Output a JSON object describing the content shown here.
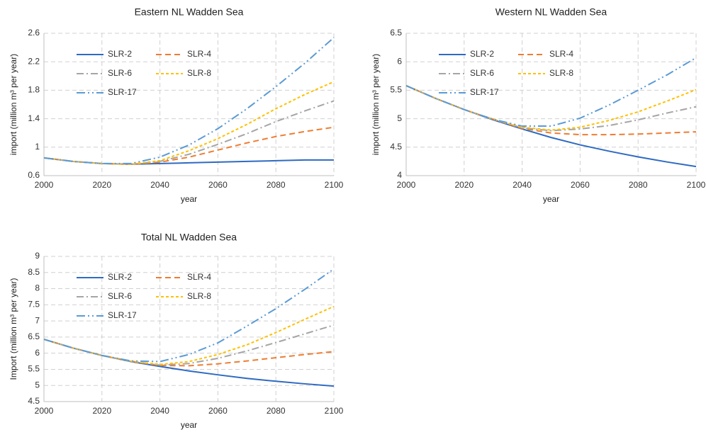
{
  "chart_data": [
    {
      "type": "line",
      "title": "Eastern NL Wadden Sea",
      "xlabel": "year",
      "ylabel": "import (million m³ per year)",
      "x": [
        2000,
        2010,
        2020,
        2030,
        2040,
        2050,
        2060,
        2070,
        2080,
        2090,
        2100
      ],
      "xlim": [
        2000,
        2100
      ],
      "xticks": [
        2000,
        2020,
        2040,
        2060,
        2080,
        2100
      ],
      "ylim": [
        0.6,
        2.6
      ],
      "yticks": [
        0.6,
        1,
        1.4,
        1.8,
        2.2,
        2.6
      ],
      "grid": true,
      "legend": "upper left",
      "series": [
        {
          "name": "SLR-2",
          "color": "#2e6ac2",
          "dash": "solid",
          "values": [
            0.85,
            0.8,
            0.77,
            0.76,
            0.77,
            0.78,
            0.79,
            0.8,
            0.81,
            0.82,
            0.82
          ]
        },
        {
          "name": "SLR-4",
          "color": "#ed7d31",
          "dash": "dash",
          "values": [
            0.85,
            0.8,
            0.77,
            0.76,
            0.79,
            0.86,
            0.96,
            1.06,
            1.15,
            1.22,
            1.28
          ]
        },
        {
          "name": "SLR-6",
          "color": "#a5a5a5",
          "dash": "dashdot",
          "values": [
            0.85,
            0.8,
            0.77,
            0.76,
            0.8,
            0.9,
            1.04,
            1.19,
            1.36,
            1.51,
            1.65
          ]
        },
        {
          "name": "SLR-8",
          "color": "#ffc000",
          "dash": "shortdash",
          "values": [
            0.85,
            0.8,
            0.77,
            0.76,
            0.81,
            0.95,
            1.12,
            1.32,
            1.54,
            1.74,
            1.92
          ]
        },
        {
          "name": "SLR-17",
          "color": "#5b9bd5",
          "dash": "dashdotdot",
          "values": [
            0.85,
            0.8,
            0.77,
            0.77,
            0.86,
            1.03,
            1.26,
            1.54,
            1.85,
            2.18,
            2.54
          ]
        }
      ]
    },
    {
      "type": "line",
      "title": "Western NL Wadden Sea",
      "xlabel": "year",
      "ylabel": "import (million m³ per year)",
      "x": [
        2000,
        2010,
        2020,
        2030,
        2040,
        2050,
        2060,
        2070,
        2080,
        2090,
        2100
      ],
      "xlim": [
        2000,
        2100
      ],
      "xticks": [
        2000,
        2020,
        2040,
        2060,
        2080,
        2100
      ],
      "ylim": [
        4,
        6.5
      ],
      "yticks": [
        4,
        4.5,
        5,
        5.5,
        6,
        6.5
      ],
      "grid": true,
      "legend": "upper left",
      "series": [
        {
          "name": "SLR-2",
          "color": "#2e6ac2",
          "dash": "solid",
          "values": [
            5.58,
            5.36,
            5.16,
            4.98,
            4.82,
            4.67,
            4.54,
            4.43,
            4.33,
            4.24,
            4.16
          ]
        },
        {
          "name": "SLR-4",
          "color": "#ed7d31",
          "dash": "dash",
          "values": [
            5.58,
            5.36,
            5.16,
            4.99,
            4.83,
            4.75,
            4.72,
            4.72,
            4.73,
            4.75,
            4.77
          ]
        },
        {
          "name": "SLR-6",
          "color": "#a5a5a5",
          "dash": "dashdot",
          "values": [
            5.58,
            5.36,
            5.16,
            4.99,
            4.84,
            4.79,
            4.82,
            4.88,
            4.98,
            5.1,
            5.21
          ]
        },
        {
          "name": "SLR-8",
          "color": "#ffc000",
          "dash": "shortdash",
          "values": [
            5.58,
            5.36,
            5.16,
            4.99,
            4.85,
            4.8,
            4.85,
            4.97,
            5.12,
            5.31,
            5.51
          ]
        },
        {
          "name": "SLR-17",
          "color": "#5b9bd5",
          "dash": "dashdotdot",
          "values": [
            5.58,
            5.36,
            5.16,
            4.99,
            4.87,
            4.87,
            5.01,
            5.24,
            5.5,
            5.77,
            6.07
          ]
        }
      ]
    },
    {
      "type": "line",
      "title": "Total NL Wadden Sea",
      "xlabel": "year",
      "ylabel": "Import (million m³ per year)",
      "x": [
        2000,
        2010,
        2020,
        2030,
        2040,
        2050,
        2060,
        2070,
        2080,
        2090,
        2100
      ],
      "xlim": [
        2000,
        2100
      ],
      "xticks": [
        2000,
        2020,
        2040,
        2060,
        2080,
        2100
      ],
      "ylim": [
        4.5,
        9
      ],
      "yticks": [
        4.5,
        5,
        5.5,
        6,
        6.5,
        7,
        7.5,
        8,
        8.5,
        9
      ],
      "grid": true,
      "legend": "upper left",
      "series": [
        {
          "name": "SLR-2",
          "color": "#2e6ac2",
          "dash": "solid",
          "values": [
            6.43,
            6.16,
            5.93,
            5.74,
            5.59,
            5.45,
            5.33,
            5.22,
            5.13,
            5.05,
            4.98
          ]
        },
        {
          "name": "SLR-4",
          "color": "#ed7d31",
          "dash": "dash",
          "values": [
            6.43,
            6.16,
            5.93,
            5.75,
            5.62,
            5.61,
            5.67,
            5.76,
            5.86,
            5.96,
            6.05
          ]
        },
        {
          "name": "SLR-6",
          "color": "#a5a5a5",
          "dash": "dashdot",
          "values": [
            6.43,
            6.16,
            5.93,
            5.75,
            5.63,
            5.68,
            5.84,
            6.07,
            6.33,
            6.6,
            6.87
          ]
        },
        {
          "name": "SLR-8",
          "color": "#ffc000",
          "dash": "shortdash",
          "values": [
            6.43,
            6.16,
            5.93,
            5.75,
            5.65,
            5.74,
            5.96,
            6.26,
            6.64,
            7.05,
            7.45
          ]
        },
        {
          "name": "SLR-17",
          "color": "#5b9bd5",
          "dash": "dashdotdot",
          "values": [
            6.43,
            6.16,
            5.93,
            5.76,
            5.74,
            5.96,
            6.32,
            6.84,
            7.38,
            7.98,
            8.61
          ]
        }
      ]
    }
  ]
}
